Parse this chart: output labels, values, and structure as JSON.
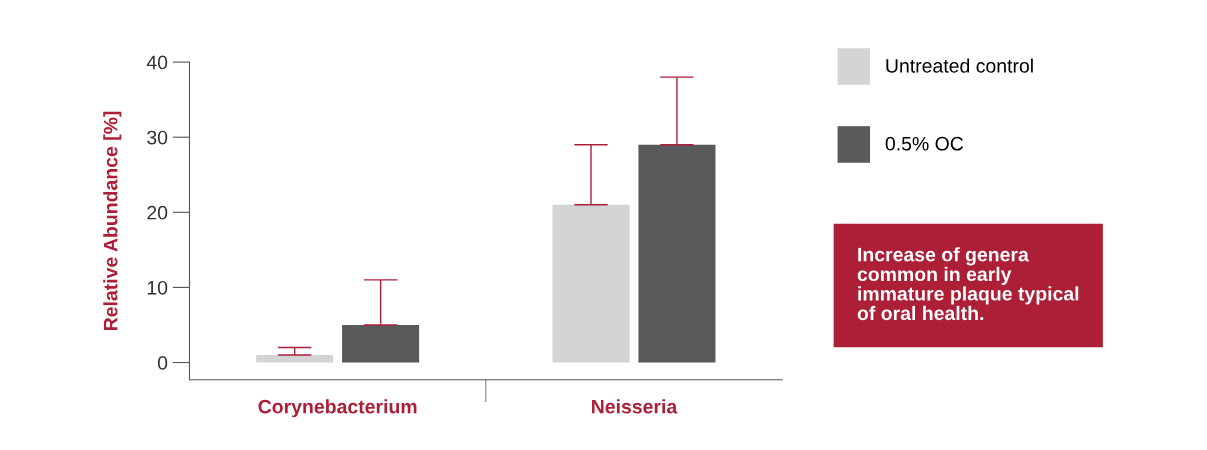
{
  "chart_data": {
    "type": "bar",
    "ylabel": "Relative Abundance [%]",
    "categories": [
      "Corynebacterium",
      "Neisseria"
    ],
    "series": [
      {
        "name": "Untreated control",
        "color": "#d3d4d6",
        "values": [
          1,
          21
        ],
        "errors": [
          [
            1,
            2
          ],
          [
            21,
            29
          ]
        ]
      },
      {
        "name": "0.5% OC",
        "color": "#58595b",
        "values": [
          5,
          29
        ],
        "errors": [
          [
            5,
            11
          ],
          [
            29,
            38
          ]
        ]
      }
    ],
    "ylim": [
      -2.3,
      40
    ],
    "yticks": [
      0,
      10,
      20,
      30,
      40
    ],
    "grid": false,
    "legend": "right",
    "annotations": [
      "Increase of genera\ncommon in early\nimmature plaque typical\nof oral health."
    ]
  }
}
